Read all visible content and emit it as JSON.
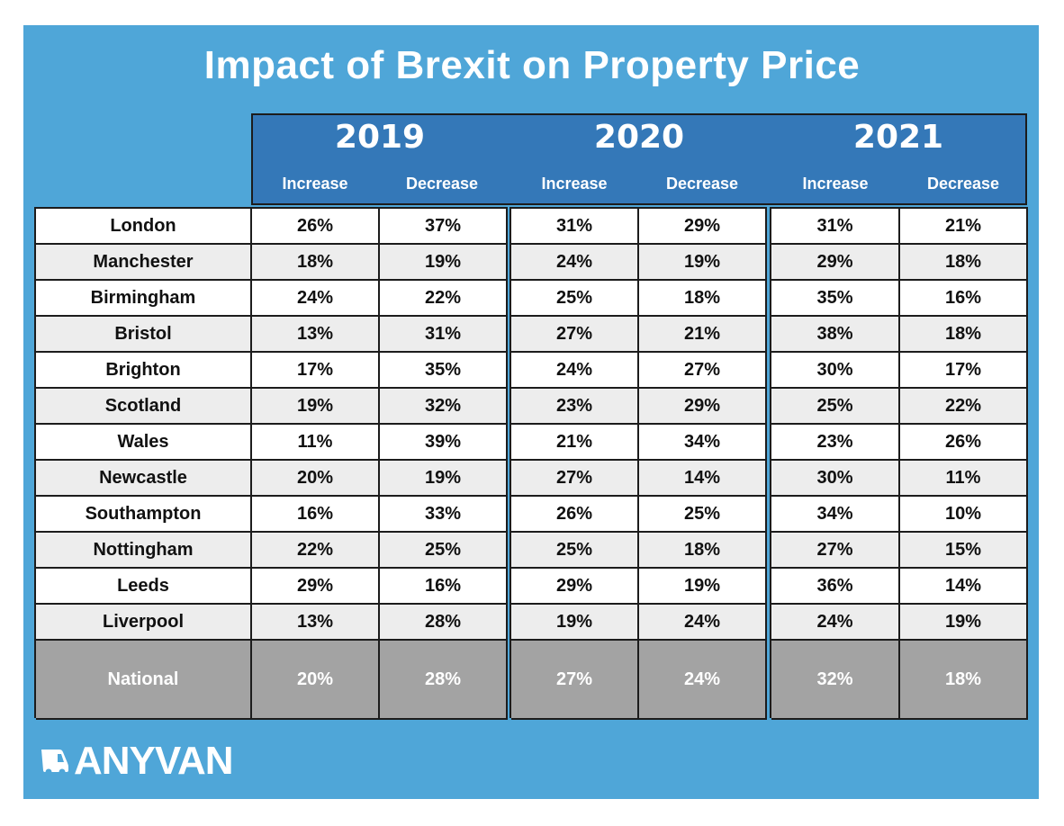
{
  "chart_data": {
    "type": "table",
    "title": "Impact of Brexit on Property Price",
    "years": [
      "2019",
      "2020",
      "2021"
    ],
    "subcolumns": [
      "Increase",
      "Decrease"
    ],
    "rows": [
      {
        "city": "London",
        "values": [
          "26%",
          "37%",
          "31%",
          "29%",
          "31%",
          "21%"
        ]
      },
      {
        "city": "Manchester",
        "values": [
          "18%",
          "19%",
          "24%",
          "19%",
          "29%",
          "18%"
        ]
      },
      {
        "city": "Birmingham",
        "values": [
          "24%",
          "22%",
          "25%",
          "18%",
          "35%",
          "16%"
        ]
      },
      {
        "city": "Bristol",
        "values": [
          "13%",
          "31%",
          "27%",
          "21%",
          "38%",
          "18%"
        ]
      },
      {
        "city": "Brighton",
        "values": [
          "17%",
          "35%",
          "24%",
          "27%",
          "30%",
          "17%"
        ]
      },
      {
        "city": "Scotland",
        "values": [
          "19%",
          "32%",
          "23%",
          "29%",
          "25%",
          "22%"
        ]
      },
      {
        "city": "Wales",
        "values": [
          "11%",
          "39%",
          "21%",
          "34%",
          "23%",
          "26%"
        ]
      },
      {
        "city": "Newcastle",
        "values": [
          "20%",
          "19%",
          "27%",
          "14%",
          "30%",
          "11%"
        ]
      },
      {
        "city": "Southampton",
        "values": [
          "16%",
          "33%",
          "26%",
          "25%",
          "34%",
          "10%"
        ]
      },
      {
        "city": "Nottingham",
        "values": [
          "22%",
          "25%",
          "25%",
          "18%",
          "27%",
          "15%"
        ]
      },
      {
        "city": "Leeds",
        "values": [
          "29%",
          "16%",
          "29%",
          "19%",
          "36%",
          "14%"
        ]
      },
      {
        "city": "Liverpool",
        "values": [
          "13%",
          "28%",
          "19%",
          "24%",
          "24%",
          "19%"
        ]
      }
    ],
    "total": {
      "city": "National",
      "values": [
        "20%",
        "28%",
        "27%",
        "24%",
        "32%",
        "18%"
      ]
    }
  },
  "brand": {
    "name": "ANYVAN",
    "icon": "van-icon"
  },
  "colors": {
    "panel": "#4fa6d8",
    "header": "#3478b8",
    "alt_row": "#ededed",
    "total_row": "#a3a3a3"
  }
}
